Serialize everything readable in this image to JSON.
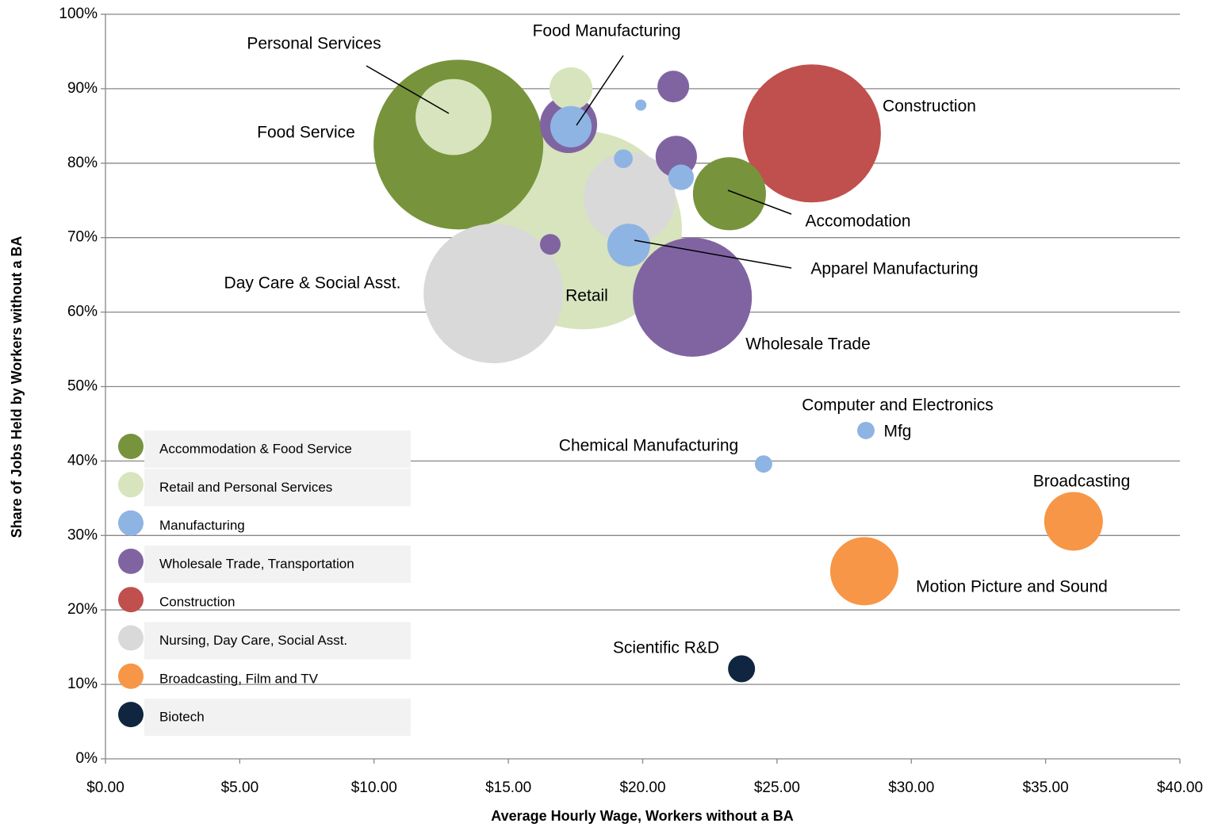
{
  "chart_data": {
    "type": "bubble",
    "x_label": "Average Hourly Wage, Workers without a BA",
    "y_label": "Share of Jobs Held by Workers without a BA",
    "xlim": [
      0,
      40
    ],
    "ylim": [
      0,
      100
    ],
    "xticks": [
      {
        "value": 0,
        "label": "$0.00"
      },
      {
        "value": 5,
        "label": "$5.00"
      },
      {
        "value": 10,
        "label": "$10.00"
      },
      {
        "value": 15,
        "label": "$15.00"
      },
      {
        "value": 20,
        "label": "$20.00"
      },
      {
        "value": 25,
        "label": "$25.00"
      },
      {
        "value": 30,
        "label": "$30.00"
      },
      {
        "value": 35,
        "label": "$35.00"
      },
      {
        "value": 40,
        "label": "$40.00"
      }
    ],
    "yticks": [
      {
        "value": 0,
        "label": "0%"
      },
      {
        "value": 10,
        "label": "10%"
      },
      {
        "value": 20,
        "label": "20%"
      },
      {
        "value": 30,
        "label": "30%"
      },
      {
        "value": 40,
        "label": "40%"
      },
      {
        "value": 50,
        "label": "50%"
      },
      {
        "value": 60,
        "label": "60%"
      },
      {
        "value": 70,
        "label": "70%"
      },
      {
        "value": 80,
        "label": "80%"
      },
      {
        "value": 90,
        "label": "90%"
      },
      {
        "value": 100,
        "label": "100%"
      }
    ],
    "grid": true,
    "legend": "bottom-left",
    "series": [
      {
        "name": "Accommodation & Food Service",
        "color": "#77933c",
        "x": [
          13.14,
          23.23
        ],
        "values": [
          82.5,
          75.9
        ],
        "sizes": [
          1145,
          212
        ]
      },
      {
        "name": "Retail and Personal Services",
        "color": "#d7e4bd",
        "x": [
          12.96,
          17.33,
          17.77
        ],
        "values": [
          86.2,
          90.0,
          71.0
        ],
        "sizes": [
          230,
          73,
          1563
        ]
      },
      {
        "name": "Manufacturing",
        "color": "#8eb4e3",
        "x": [
          17.33,
          19.93,
          21.43,
          19.28,
          19.48,
          28.31,
          24.5
        ],
        "values": [
          84.9,
          87.8,
          78.1,
          80.6,
          69.0,
          44.1,
          39.6
        ],
        "sizes": [
          68,
          5,
          26,
          14,
          73,
          12,
          12
        ]
      },
      {
        "name": "Wholesale Trade, Transportation",
        "color": "#8064a2",
        "x": [
          17.24,
          21.14,
          21.25,
          16.56,
          21.85
        ],
        "values": [
          85.2,
          90.3,
          80.9,
          69.1,
          62.0
        ],
        "sizes": [
          130,
          40,
          68,
          17,
          563
        ]
      },
      {
        "name": "Construction",
        "color": "#c0504d",
        "x": [
          26.3
        ],
        "values": [
          84.0
        ],
        "sizes": [
          757
        ]
      },
      {
        "name": "Nursing, Day Care, Social Asst.",
        "color": "#d9d9d9",
        "x": [
          14.44,
          19.51
        ],
        "values": [
          62.5,
          75.3
        ],
        "sizes": [
          774,
          336
        ]
      },
      {
        "name": "Broadcasting, Film and TV",
        "color": "#f79646",
        "x": [
          36.04,
          28.25
        ],
        "values": [
          31.9,
          25.2
        ],
        "sizes": [
          137,
          185
        ]
      },
      {
        "name": "Biotech",
        "color": "#10253f",
        "x": [
          23.68
        ],
        "values": [
          12.1
        ],
        "sizes": [
          29
        ]
      }
    ],
    "annotations": [
      "Personal Services",
      "Food Manufacturing",
      "Construction",
      "Food Service",
      "Accomodation",
      "Apparel Manufacturing",
      "Day Care & Social Asst.",
      "Retail",
      "Wholesale Trade",
      "Computer and Electronics",
      "Mfg",
      "Chemical Manufacturing",
      "Broadcasting",
      "Motion Picture and Sound",
      "Scientific R&D"
    ]
  }
}
